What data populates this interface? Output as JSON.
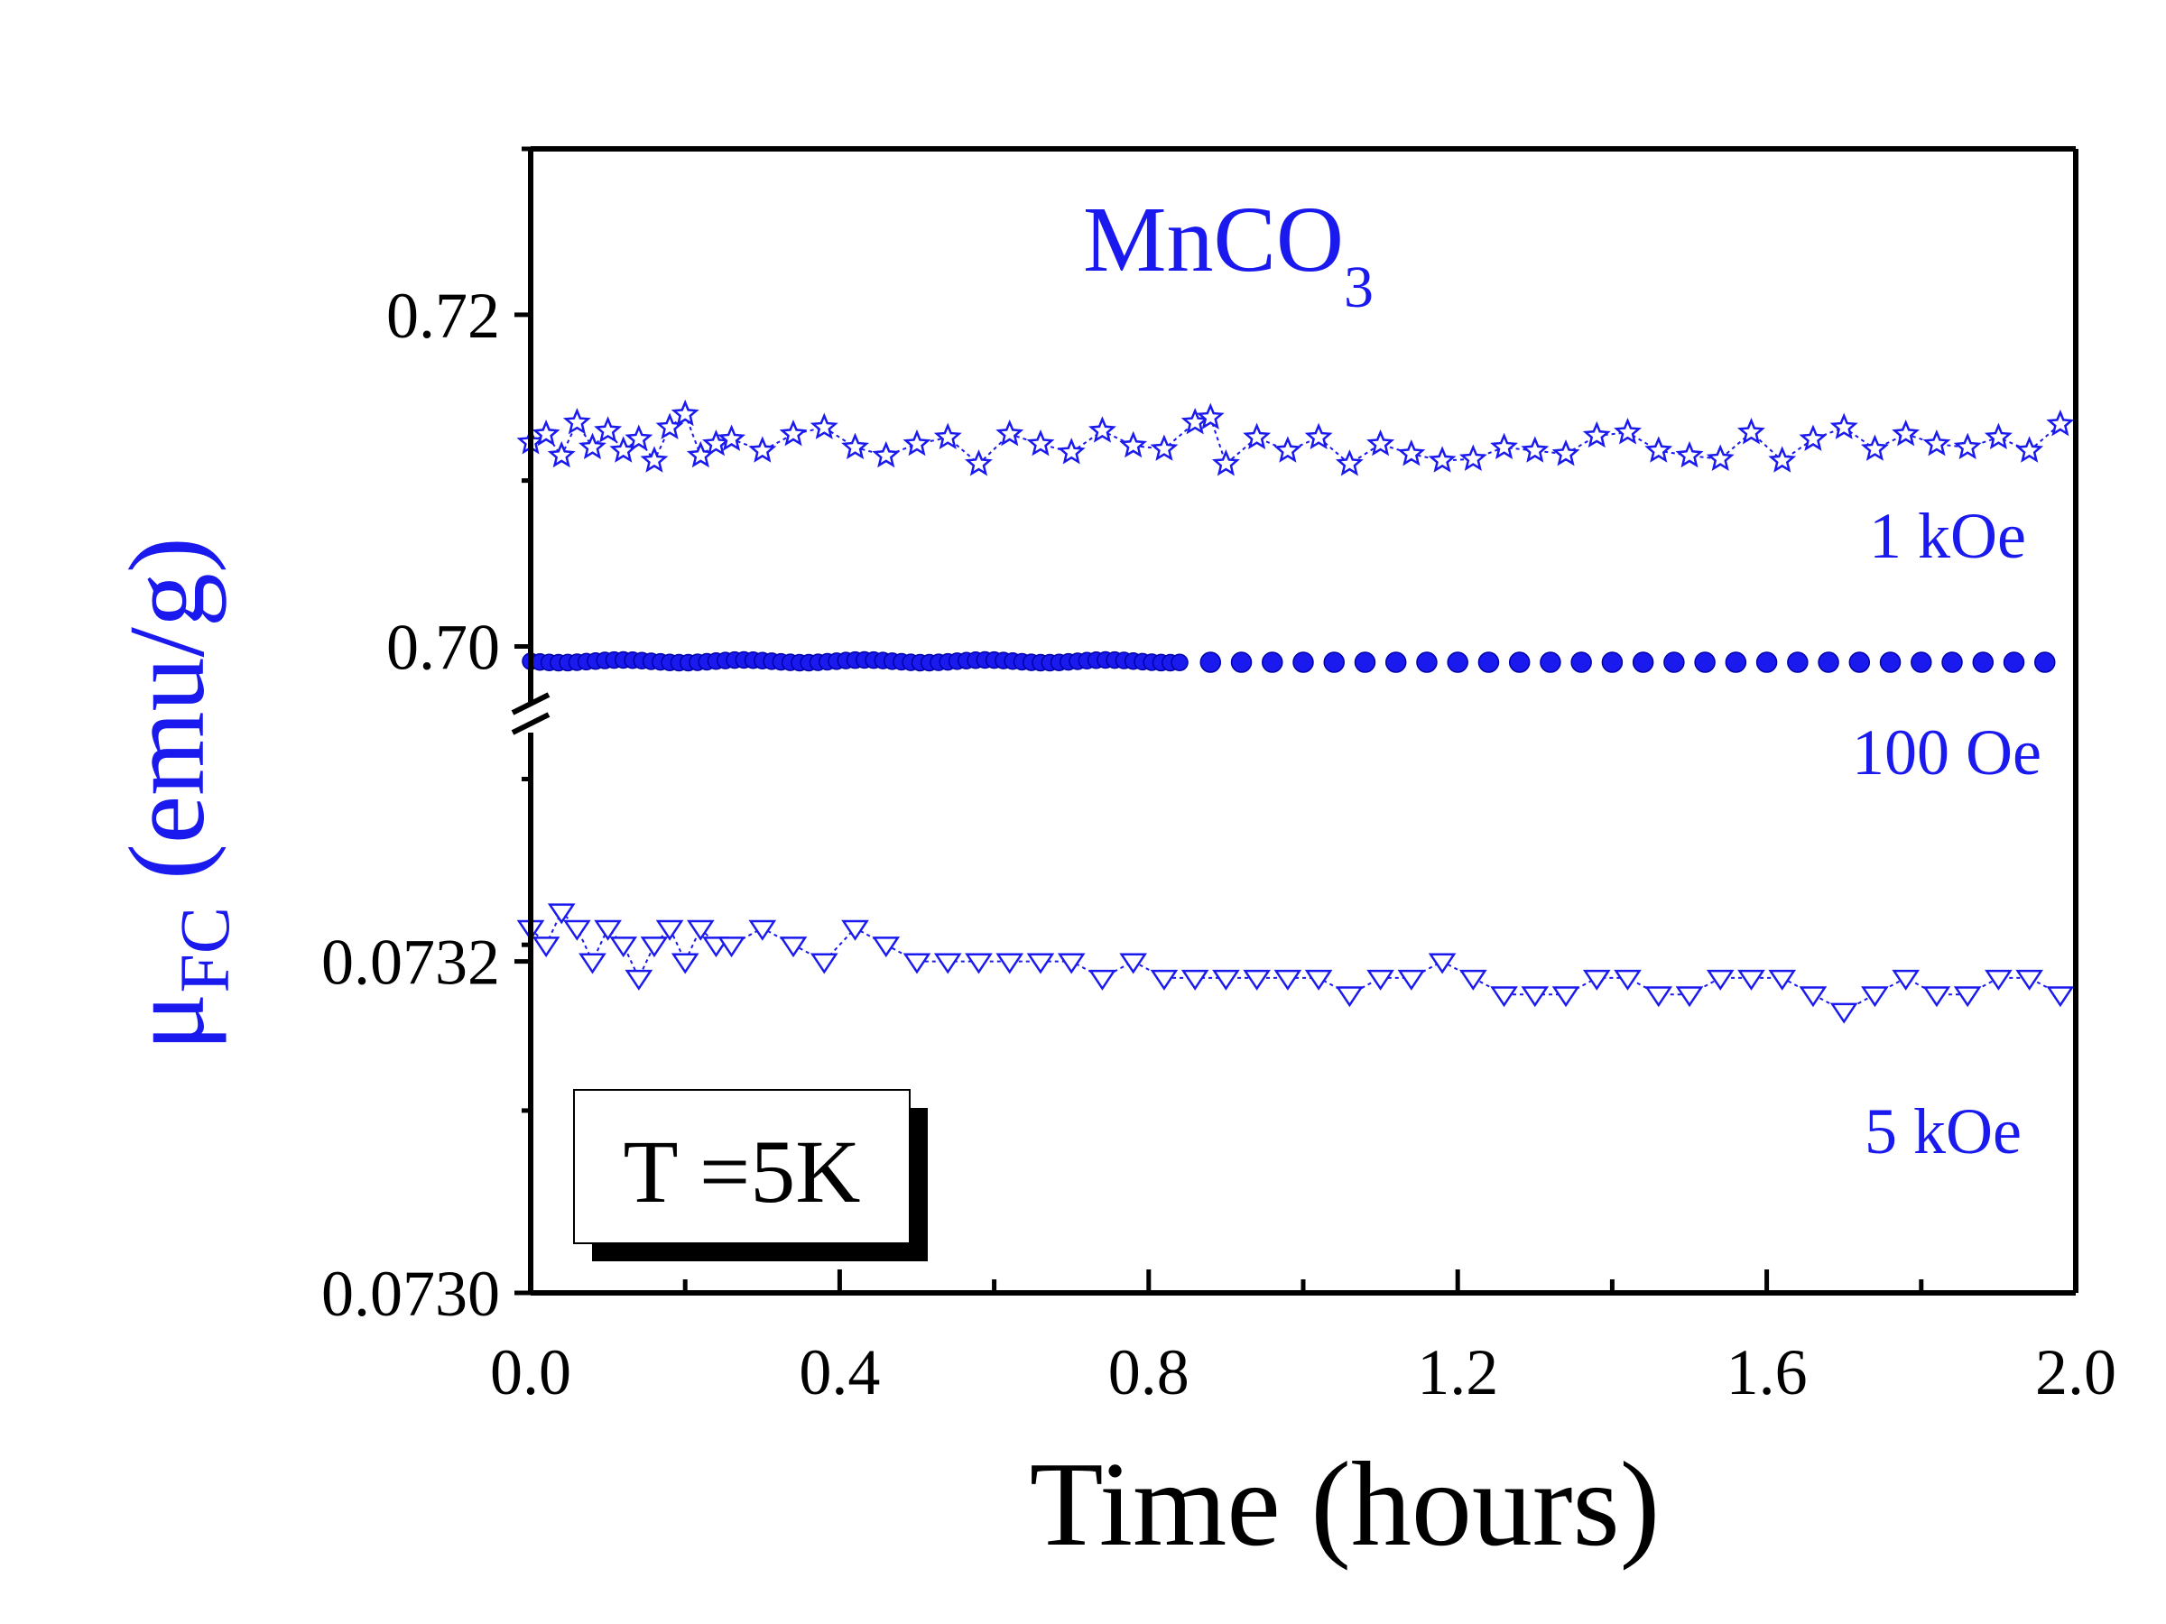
{
  "chart_data": {
    "type": "scatter",
    "title": "MnCO",
    "title_subscript": "3",
    "xlabel": "Time (hours)",
    "ylabel_main": "μ",
    "ylabel_subscript": "FC",
    "ylabel_units": " (emu/g)",
    "xlim": [
      0.0,
      2.0
    ],
    "x_ticks": [
      "0.0",
      "0.4",
      "0.8",
      "1.2",
      "1.6",
      "2.0"
    ],
    "y_ticks_upper": [
      "0.72",
      "0.70"
    ],
    "y_ticks_lower": [
      "0.0732",
      "0.0730"
    ],
    "ylim_upper": [
      0.696,
      0.73
    ],
    "ylim_lower": [
      0.073,
      0.07335
    ],
    "axis_break": true,
    "annotation": "T =5K",
    "colors": {
      "series": "#1a1aee",
      "axis": "#000000",
      "text": "#000000"
    },
    "series": [
      {
        "name": "1 kOe",
        "marker": "star",
        "panel": "upper",
        "dense_x": [
          0.0,
          0.02,
          0.04,
          0.06,
          0.08,
          0.1,
          0.12,
          0.14,
          0.16,
          0.18,
          0.2,
          0.22,
          0.24
        ],
        "dense_y": [
          0.7123,
          0.7128,
          0.7115,
          0.7135,
          0.712,
          0.713,
          0.7118,
          0.7125,
          0.7112,
          0.7132,
          0.714,
          0.7115,
          0.7122
        ],
        "x": [
          0.26,
          0.3,
          0.34,
          0.38,
          0.42,
          0.46,
          0.5,
          0.54,
          0.58,
          0.62,
          0.66,
          0.7,
          0.74,
          0.78,
          0.82,
          0.86,
          0.88,
          0.9,
          0.94,
          0.98,
          1.02,
          1.06,
          1.1,
          1.14,
          1.18,
          1.22,
          1.26,
          1.3,
          1.34,
          1.38,
          1.42,
          1.46,
          1.5,
          1.54,
          1.58,
          1.62,
          1.66,
          1.7,
          1.74,
          1.78,
          1.82,
          1.86,
          1.9,
          1.94,
          1.98
        ],
        "y": [
          0.7125,
          0.7118,
          0.7128,
          0.7132,
          0.712,
          0.7115,
          0.7122,
          0.7126,
          0.711,
          0.7128,
          0.7122,
          0.7117,
          0.713,
          0.7121,
          0.7119,
          0.7135,
          0.7138,
          0.711,
          0.7126,
          0.7118,
          0.7126,
          0.711,
          0.7122,
          0.7116,
          0.7112,
          0.7113,
          0.712,
          0.7118,
          0.7116,
          0.7127,
          0.7129,
          0.7118,
          0.7115,
          0.7113,
          0.7129,
          0.7112,
          0.7125,
          0.7132,
          0.7119,
          0.7128,
          0.7122,
          0.712,
          0.7126,
          0.7118,
          0.7134
        ]
      },
      {
        "name": "100 Oe",
        "marker": "circle",
        "panel": "upper",
        "x_start": 0.0,
        "x_end": 1.98,
        "y_const": 0.6991,
        "sparse_step": 0.04,
        "dense_until": 0.84
      },
      {
        "name": "5 kOe",
        "marker": "triangle-down",
        "panel": "lower",
        "dense_x": [
          0.0,
          0.02,
          0.04,
          0.06,
          0.08,
          0.1,
          0.12,
          0.14,
          0.16,
          0.18,
          0.2,
          0.22,
          0.24
        ],
        "dense_y": [
          0.07322,
          0.07321,
          0.07323,
          0.07322,
          0.0732,
          0.07322,
          0.07321,
          0.07319,
          0.07321,
          0.07322,
          0.0732,
          0.07322,
          0.07321
        ],
        "x": [
          0.26,
          0.3,
          0.34,
          0.38,
          0.42,
          0.46,
          0.5,
          0.54,
          0.58,
          0.62,
          0.66,
          0.7,
          0.74,
          0.78,
          0.82,
          0.86,
          0.9,
          0.94,
          0.98,
          1.02,
          1.06,
          1.1,
          1.14,
          1.18,
          1.22,
          1.26,
          1.3,
          1.34,
          1.38,
          1.42,
          1.46,
          1.5,
          1.54,
          1.58,
          1.62,
          1.66,
          1.7,
          1.74,
          1.78,
          1.82,
          1.86,
          1.9,
          1.94,
          1.98
        ],
        "y": [
          0.07321,
          0.07322,
          0.07321,
          0.0732,
          0.07322,
          0.07321,
          0.0732,
          0.0732,
          0.0732,
          0.0732,
          0.0732,
          0.0732,
          0.07319,
          0.0732,
          0.07319,
          0.07319,
          0.07319,
          0.07319,
          0.07319,
          0.07319,
          0.07318,
          0.07319,
          0.07319,
          0.0732,
          0.07319,
          0.07318,
          0.07318,
          0.07318,
          0.07319,
          0.07319,
          0.07318,
          0.07318,
          0.07319,
          0.07319,
          0.07319,
          0.07318,
          0.07317,
          0.07318,
          0.07319,
          0.07318,
          0.07318,
          0.07319,
          0.07319,
          0.07318
        ]
      }
    ]
  }
}
